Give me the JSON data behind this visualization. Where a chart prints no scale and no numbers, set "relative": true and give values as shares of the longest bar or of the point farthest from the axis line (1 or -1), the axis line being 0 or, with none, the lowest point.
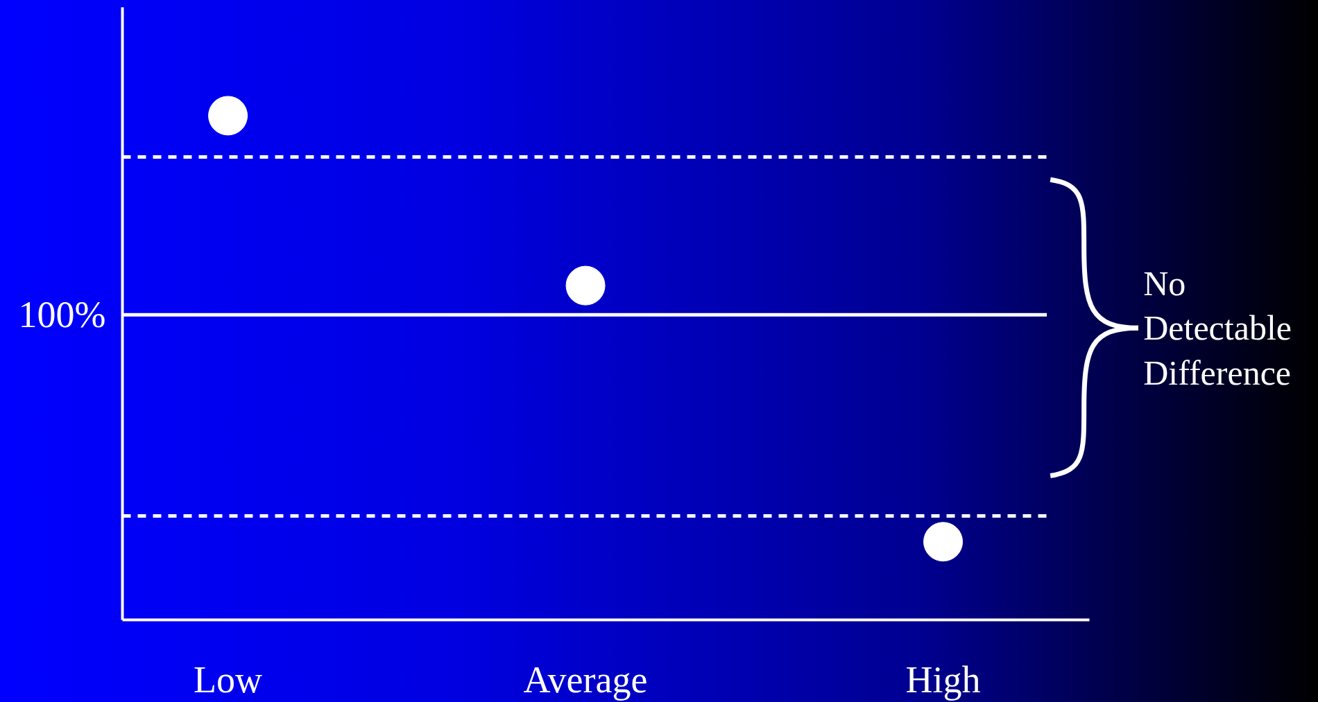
{
  "chart_data": {
    "type": "scatter",
    "relative": true,
    "categories": [
      "Low",
      "Average",
      "High"
    ],
    "series": [
      {
        "color": "#ffffff",
        "values": [
          1.0,
          0.663,
          0.155
        ]
      }
    ],
    "marker": "circle",
    "ref_lines": [
      {
        "axis": "y",
        "value": 0.918,
        "color": "#ffffff",
        "line_style": "dashed"
      },
      {
        "axis": "y",
        "value": 0.605,
        "color": "#ffffff",
        "line_style": "solid"
      },
      {
        "axis": "y",
        "value": 0.206,
        "color": "#ffffff",
        "line_style": "dashed"
      }
    ],
    "annotations": [
      "100%",
      "No Detectable Difference"
    ]
  }
}
